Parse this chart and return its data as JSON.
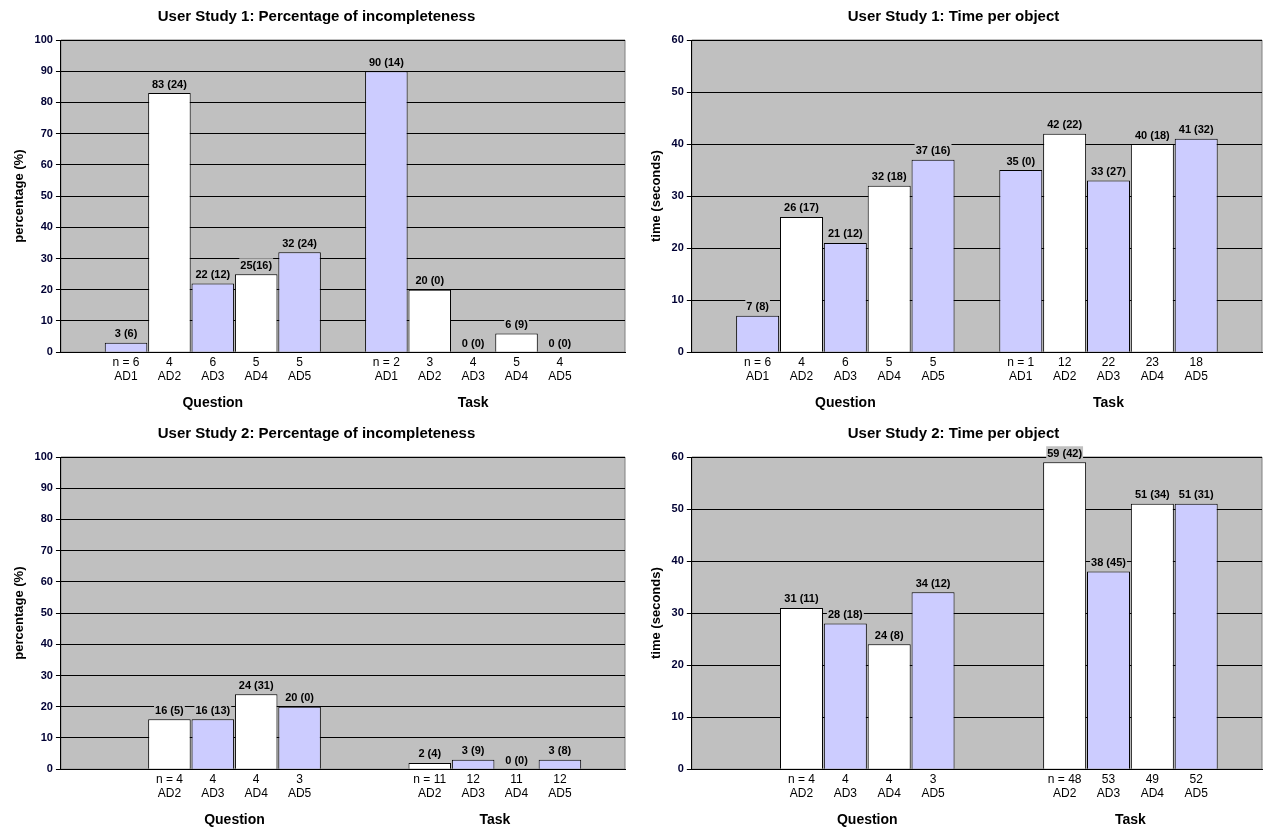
{
  "chart_data": [
    {
      "type": "bar",
      "title": "User Study 1: Percentage of incompleteness",
      "ylabel": "percentage (%)",
      "categories": [
        null,
        "n = 6\nAD1",
        "4\nAD2",
        "6\nAD3",
        "5\nAD4",
        "5\nAD5",
        null,
        "n = 2\nAD1",
        "3\nAD2",
        "4\nAD3",
        "5\nAD4",
        "4\nAD5",
        null
      ],
      "values": [
        null,
        3,
        83,
        22,
        25,
        32,
        null,
        90,
        20,
        0,
        6,
        0,
        null
      ],
      "colors": [
        null,
        "#ccccff",
        "#ffffff",
        "#ccccff",
        "#ffffff",
        "#ccccff",
        null,
        "#ccccff",
        "#ffffff",
        "#ccccff",
        "#ffffff",
        "#ccccff",
        null
      ],
      "value_labels": [
        null,
        "3 (6)",
        "83 (24)",
        "22 (12)",
        "25(16)",
        "32 (24)",
        null,
        "90 (14)",
        "20 (0)",
        "0 (0)",
        "6 (9)",
        "0 (0)",
        null
      ],
      "ylim": [
        0,
        100
      ],
      "yticks": [
        0,
        10,
        20,
        30,
        40,
        50,
        60,
        70,
        80,
        90,
        100
      ],
      "grid": "y",
      "legend": false,
      "annotations": [
        "Question",
        "Task"
      ]
    },
    {
      "type": "bar",
      "title": "User Study 1: Time per object",
      "ylabel": "time (seconds)",
      "categories": [
        null,
        "n = 6\nAD1",
        "4\nAD2",
        "6\nAD3",
        "5\nAD4",
        "5\nAD5",
        null,
        "n = 1\nAD1",
        "12\nAD2",
        "22\nAD3",
        "23\nAD4",
        "18\nAD5",
        null
      ],
      "values": [
        null,
        7,
        26,
        21,
        32,
        37,
        null,
        35,
        42,
        33,
        40,
        41,
        null
      ],
      "colors": [
        null,
        "#ccccff",
        "#ffffff",
        "#ccccff",
        "#ffffff",
        "#ccccff",
        null,
        "#ccccff",
        "#ffffff",
        "#ccccff",
        "#ffffff",
        "#ccccff",
        null
      ],
      "value_labels": [
        null,
        "7 (8)",
        "26 (17)",
        "21 (12)",
        "32 (18)",
        "37 (16)",
        null,
        "35 (0)",
        "42 (22)",
        "33 (27)",
        "40 (18)",
        "41 (32)",
        null
      ],
      "ylim": [
        0,
        60
      ],
      "yticks": [
        0,
        10,
        20,
        30,
        40,
        50,
        60
      ],
      "grid": "y",
      "legend": false,
      "annotations": [
        "Question",
        "Task"
      ]
    },
    {
      "type": "bar",
      "title": "User Study 2: Percentage of incompleteness",
      "ylabel": "percentage (%)",
      "categories": [
        null,
        null,
        "n = 4\nAD2",
        "4\nAD3",
        "4\nAD4",
        "3\nAD5",
        null,
        null,
        "n = 11\nAD2",
        "12\nAD3",
        "11\nAD4",
        "12\nAD5",
        null
      ],
      "values": [
        null,
        null,
        16,
        16,
        24,
        20,
        null,
        null,
        2,
        3,
        0,
        3,
        null
      ],
      "colors": [
        null,
        null,
        "#ffffff",
        "#ccccff",
        "#ffffff",
        "#ccccff",
        null,
        null,
        "#ffffff",
        "#ccccff",
        "#ffffff",
        "#ccccff",
        null
      ],
      "value_labels": [
        null,
        null,
        "16 (5)",
        "16 (13)",
        "24 (31)",
        "20 (0)",
        null,
        null,
        "2 (4)",
        "3 (9)",
        "0 (0)",
        "3 (8)",
        null
      ],
      "ylim": [
        0,
        100
      ],
      "yticks": [
        0,
        10,
        20,
        30,
        40,
        50,
        60,
        70,
        80,
        90,
        100
      ],
      "grid": "y",
      "legend": false,
      "annotations": [
        "Question",
        "Task"
      ]
    },
    {
      "type": "bar",
      "title": "User Study 2: Time per object",
      "ylabel": "time (seconds)",
      "categories": [
        null,
        null,
        "n = 4\nAD2",
        "4\nAD3",
        "4\nAD4",
        "3\nAD5",
        null,
        null,
        "n = 48\nAD2",
        "53\nAD3",
        "49\nAD4",
        "52\nAD5",
        null
      ],
      "values": [
        null,
        null,
        31,
        28,
        24,
        34,
        null,
        null,
        59,
        38,
        51,
        51,
        null
      ],
      "colors": [
        null,
        null,
        "#ffffff",
        "#ccccff",
        "#ffffff",
        "#ccccff",
        null,
        null,
        "#ffffff",
        "#ccccff",
        "#ffffff",
        "#ccccff",
        null
      ],
      "value_labels": [
        null,
        null,
        "31 (11)",
        "28 (18)",
        "24 (8)",
        "34 (12)",
        null,
        null,
        "59 (42)",
        "38 (45)",
        "51 (34)",
        "51 (31)",
        null
      ],
      "ylim": [
        0,
        60
      ],
      "yticks": [
        0,
        10,
        20,
        30,
        40,
        50,
        60
      ],
      "grid": "y",
      "legend": false,
      "annotations": [
        "Question",
        "Task"
      ]
    }
  ]
}
